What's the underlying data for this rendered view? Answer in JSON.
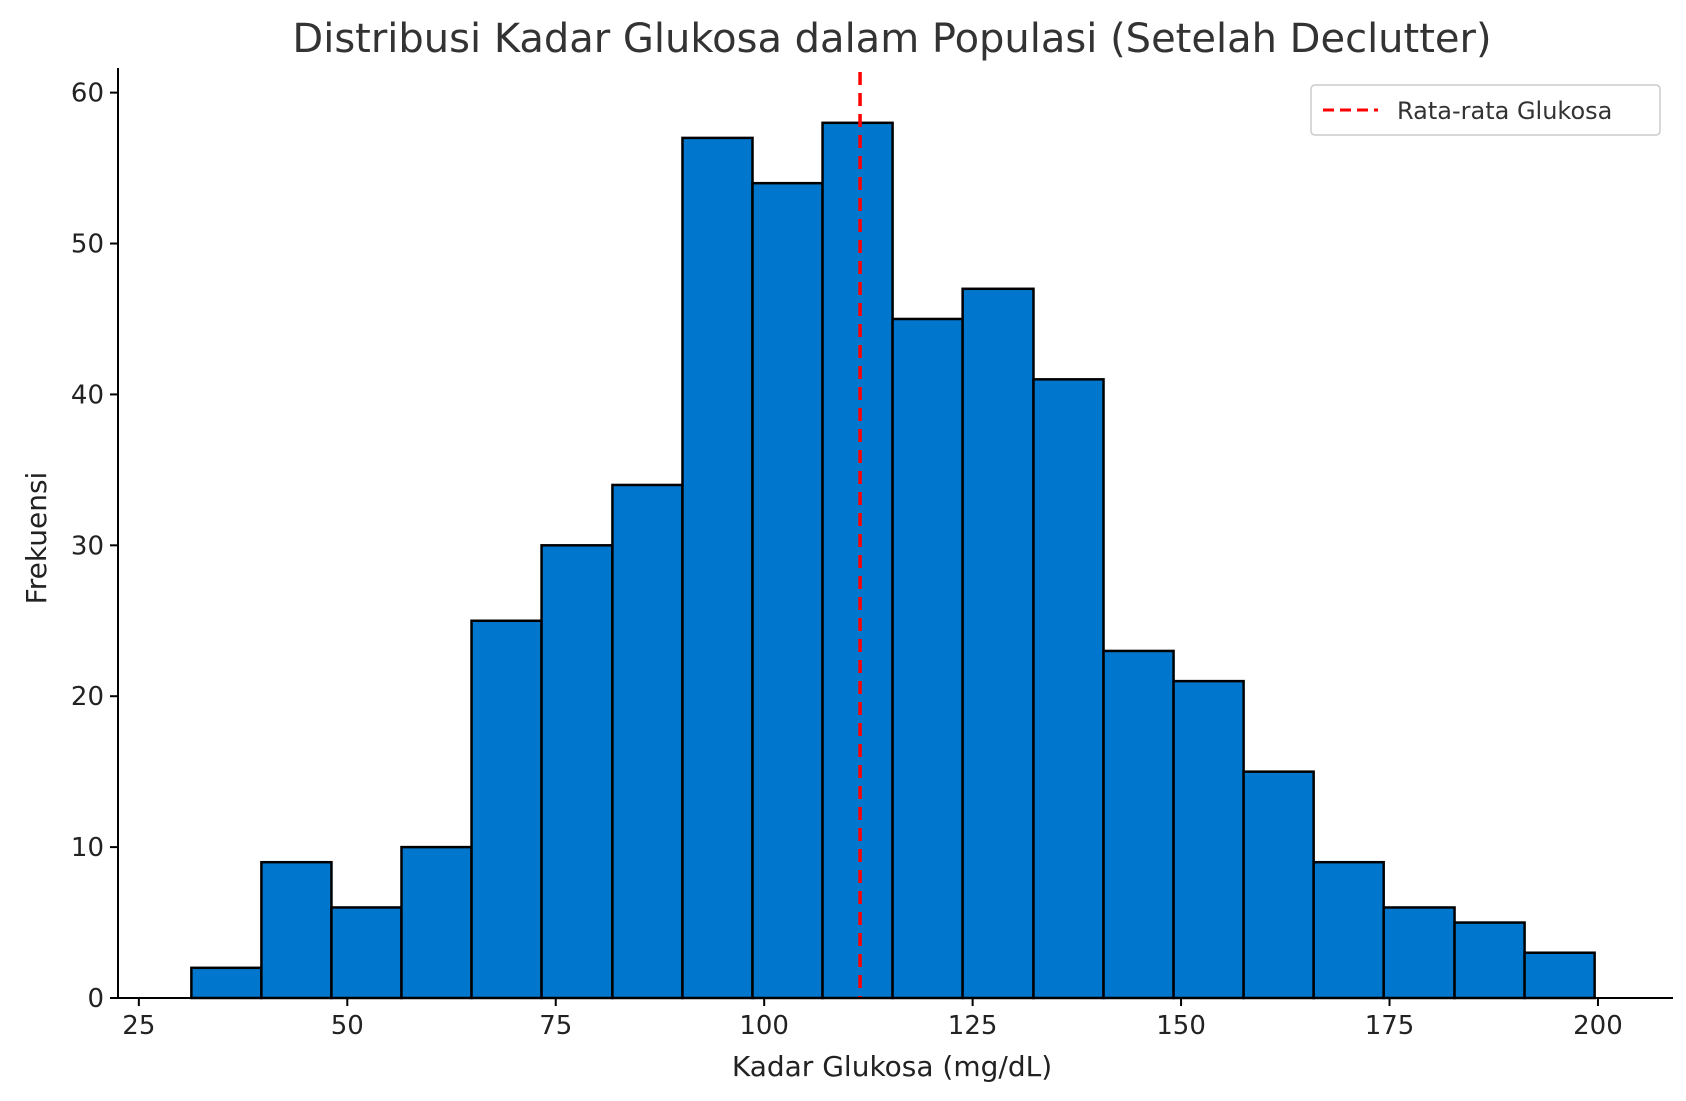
{
  "chart_data": {
    "type": "bar",
    "title": "Distribusi Kadar Glukosa dalam Populasi (Setelah Declutter)",
    "xlabel": "Kadar Glukosa (mg/dL)",
    "ylabel": "Frekuensi",
    "xlim": [
      22.5,
      209
    ],
    "ylim": [
      0,
      61.5
    ],
    "x_ticks": [
      25,
      50,
      75,
      100,
      125,
      150,
      175,
      200
    ],
    "y_ticks": [
      0,
      10,
      20,
      30,
      40,
      50,
      60
    ],
    "bins": [
      {
        "start": 31.3,
        "end": 39.7,
        "count": 2
      },
      {
        "start": 39.7,
        "end": 48.1,
        "count": 9
      },
      {
        "start": 48.1,
        "end": 56.5,
        "count": 6
      },
      {
        "start": 56.5,
        "end": 64.9,
        "count": 10
      },
      {
        "start": 64.9,
        "end": 73.3,
        "count": 25
      },
      {
        "start": 73.3,
        "end": 81.8,
        "count": 30
      },
      {
        "start": 81.8,
        "end": 90.2,
        "count": 34
      },
      {
        "start": 90.2,
        "end": 98.6,
        "count": 57
      },
      {
        "start": 98.6,
        "end": 107.0,
        "count": 54
      },
      {
        "start": 107.0,
        "end": 115.4,
        "count": 58
      },
      {
        "start": 115.4,
        "end": 123.8,
        "count": 45
      },
      {
        "start": 123.8,
        "end": 132.3,
        "count": 47
      },
      {
        "start": 132.3,
        "end": 140.7,
        "count": 41
      },
      {
        "start": 140.7,
        "end": 149.1,
        "count": 23
      },
      {
        "start": 149.1,
        "end": 157.5,
        "count": 21
      },
      {
        "start": 157.5,
        "end": 165.9,
        "count": 15
      },
      {
        "start": 165.9,
        "end": 174.3,
        "count": 9
      },
      {
        "start": 174.3,
        "end": 182.8,
        "count": 6
      },
      {
        "start": 182.8,
        "end": 191.2,
        "count": 5
      },
      {
        "start": 191.2,
        "end": 199.6,
        "count": 3
      }
    ],
    "mean_line": {
      "value": 111.5,
      "label": "Rata-rata Glukosa",
      "color": "#ff0000"
    },
    "bar_color": "#0077cc",
    "edge_color": "#000000",
    "grid": false,
    "legend_position": "top-right"
  }
}
